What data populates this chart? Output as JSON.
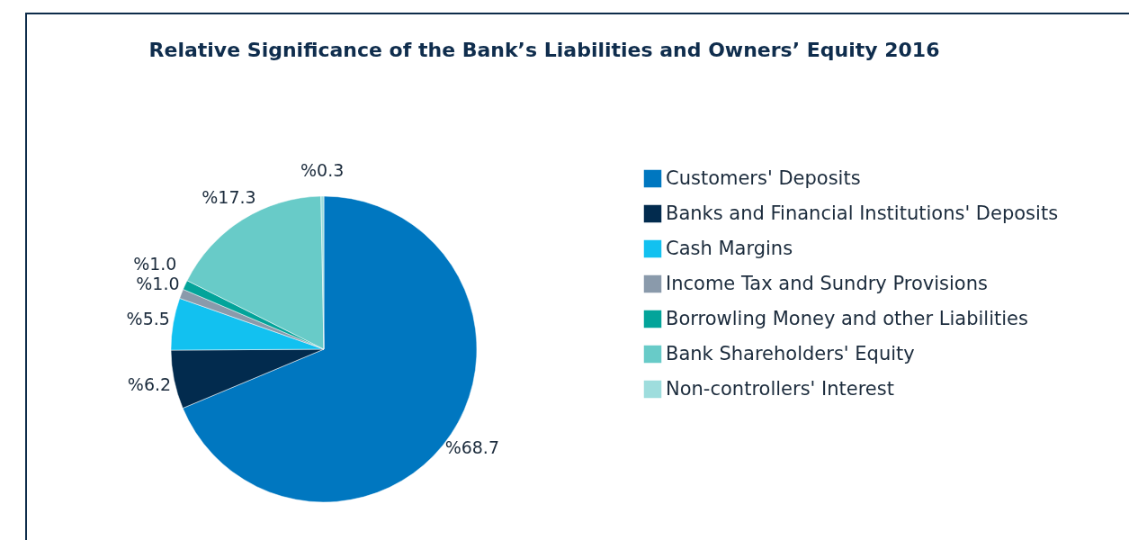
{
  "chart_data": {
    "type": "pie",
    "title": "Relative Significance of the Bank’s Liabilities and Owners’ Equity 2016",
    "categories": [
      "Customers' Deposits",
      "Banks and Financial Institutions' Deposits",
      "Cash Margins",
      "Income Tax and Sundry Provisions",
      "Borrowling Money and other Liabilities",
      "Bank Shareholders' Equity",
      "Non-controllers' Interest"
    ],
    "values": [
      68.7,
      6.2,
      5.5,
      1.0,
      1.0,
      17.3,
      0.3
    ],
    "value_labels": [
      "%68.7",
      "%6.2",
      "%5.5",
      "%1.0",
      "%1.0",
      "%17.3",
      "%0.3"
    ],
    "colors": [
      "#0077c0",
      "#022b4e",
      "#12c1f0",
      "#8a9aab",
      "#03a49a",
      "#68cbc8",
      "#9edddd"
    ],
    "legend": "right"
  }
}
